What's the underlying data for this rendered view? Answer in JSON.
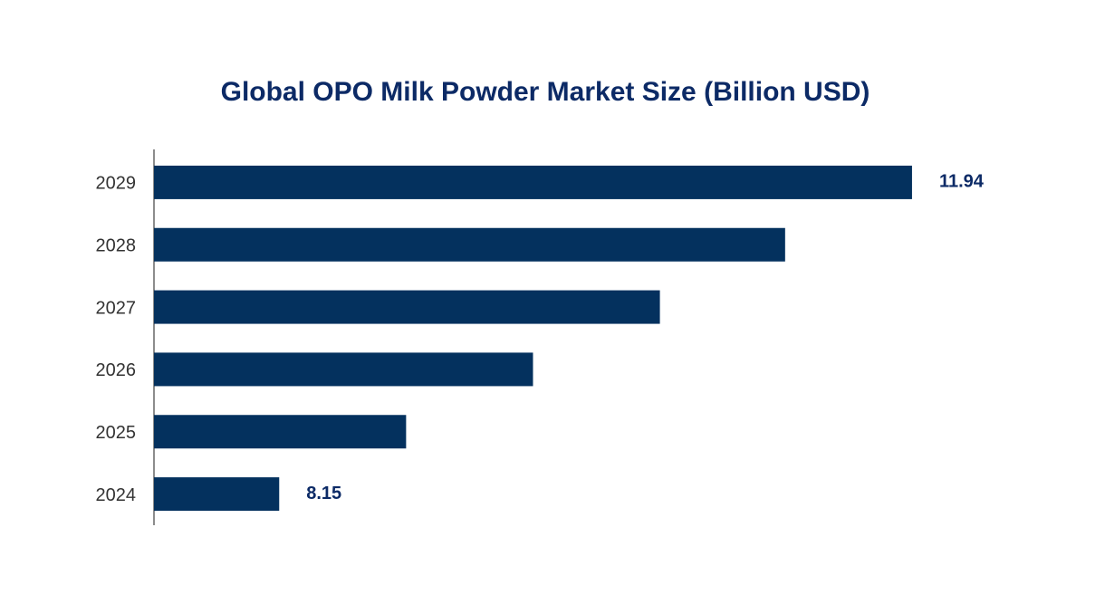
{
  "chart_data": {
    "type": "barh",
    "title": "Global OPO Milk Powder Market Size (Billion USD)",
    "categories": [
      "2024",
      "2025",
      "2026",
      "2027",
      "2028",
      "2029"
    ],
    "values": [
      8.15,
      8.91,
      9.67,
      10.43,
      11.18,
      11.94
    ],
    "value_labels": [
      "8.15",
      null,
      null,
      null,
      null,
      "11.94"
    ],
    "color": "#04315e",
    "xlim": [
      7.4,
      12.0
    ]
  }
}
